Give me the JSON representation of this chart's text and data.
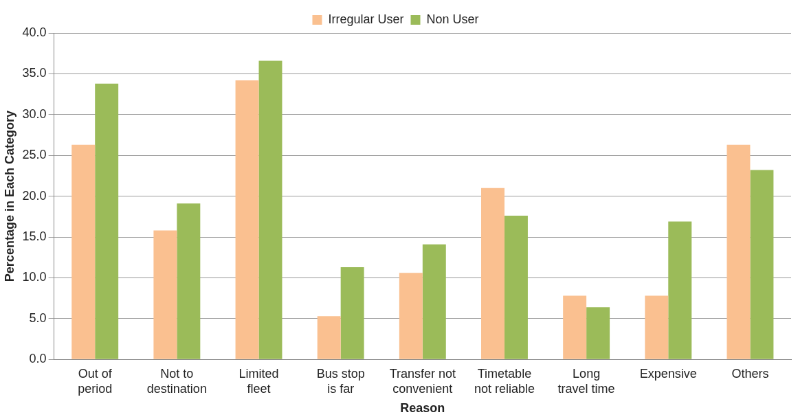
{
  "chart_data": {
    "type": "bar",
    "xlabel": "Reason",
    "ylabel": "Percentage in Each Category",
    "categories": [
      "Out of period",
      "Not to destination",
      "Limited fleet",
      "Bus stop is far",
      "Transfer not convenient",
      "Timetable not reliable",
      "Long travel time",
      "Expensive",
      "Others"
    ],
    "series": [
      {
        "name": "Irregular User",
        "color": "#fac090",
        "values": [
          26.3,
          15.8,
          34.2,
          5.3,
          10.6,
          21.0,
          7.8,
          7.8,
          26.3
        ]
      },
      {
        "name": "Non User",
        "color": "#9bbb59",
        "values": [
          33.8,
          19.1,
          36.6,
          11.3,
          14.1,
          17.6,
          6.4,
          16.9,
          23.2
        ]
      }
    ],
    "ylim": [
      0,
      40
    ],
    "yticks": [
      {
        "value": 0,
        "label": "0.0"
      },
      {
        "value": 5,
        "label": "5.0"
      },
      {
        "value": 10,
        "label": "10.0"
      },
      {
        "value": 15,
        "label": "15.0"
      },
      {
        "value": 20,
        "label": "20.0"
      },
      {
        "value": 25,
        "label": "25.0"
      },
      {
        "value": 30,
        "label": "30.0"
      },
      {
        "value": 35,
        "label": "35.0"
      },
      {
        "value": 40,
        "label": "40.0"
      }
    ],
    "grid": "y",
    "legend": "top"
  }
}
